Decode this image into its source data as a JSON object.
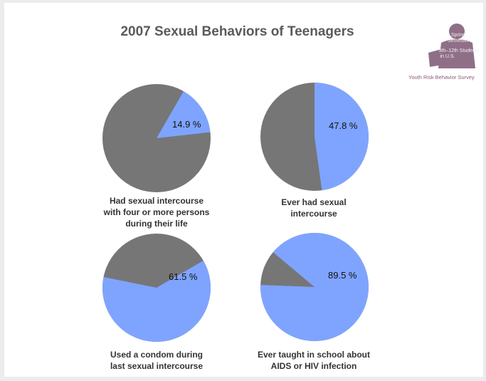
{
  "title": "2007 Sexual Behaviors of Teenagers",
  "badge": {
    "line1": "Spring",
    "line2": "Semester",
    "line3": "9th–12th Students",
    "line4": "in U.S."
  },
  "source": "Youth Risk Behavior Survey",
  "colors": {
    "highlight": "#7fa4ff",
    "rest": "#767676",
    "badge": "#8f6f87"
  },
  "chart_data": [
    {
      "type": "pie",
      "label": "14.9 %",
      "value": 14.9,
      "caption": "Had sexual intercourse\nwith four or more persons\nduring their life"
    },
    {
      "type": "pie",
      "label": "47.8 %",
      "value": 47.8,
      "caption": "Ever had sexual\nintercourse"
    },
    {
      "type": "pie",
      "label": "61.5 %",
      "value": 61.5,
      "caption": "Used a condom during\nlast sexual intercourse"
    },
    {
      "type": "pie",
      "label": "89.5 %",
      "value": 89.5,
      "caption": "Ever taught in school about\nAIDS or HIV infection"
    }
  ]
}
